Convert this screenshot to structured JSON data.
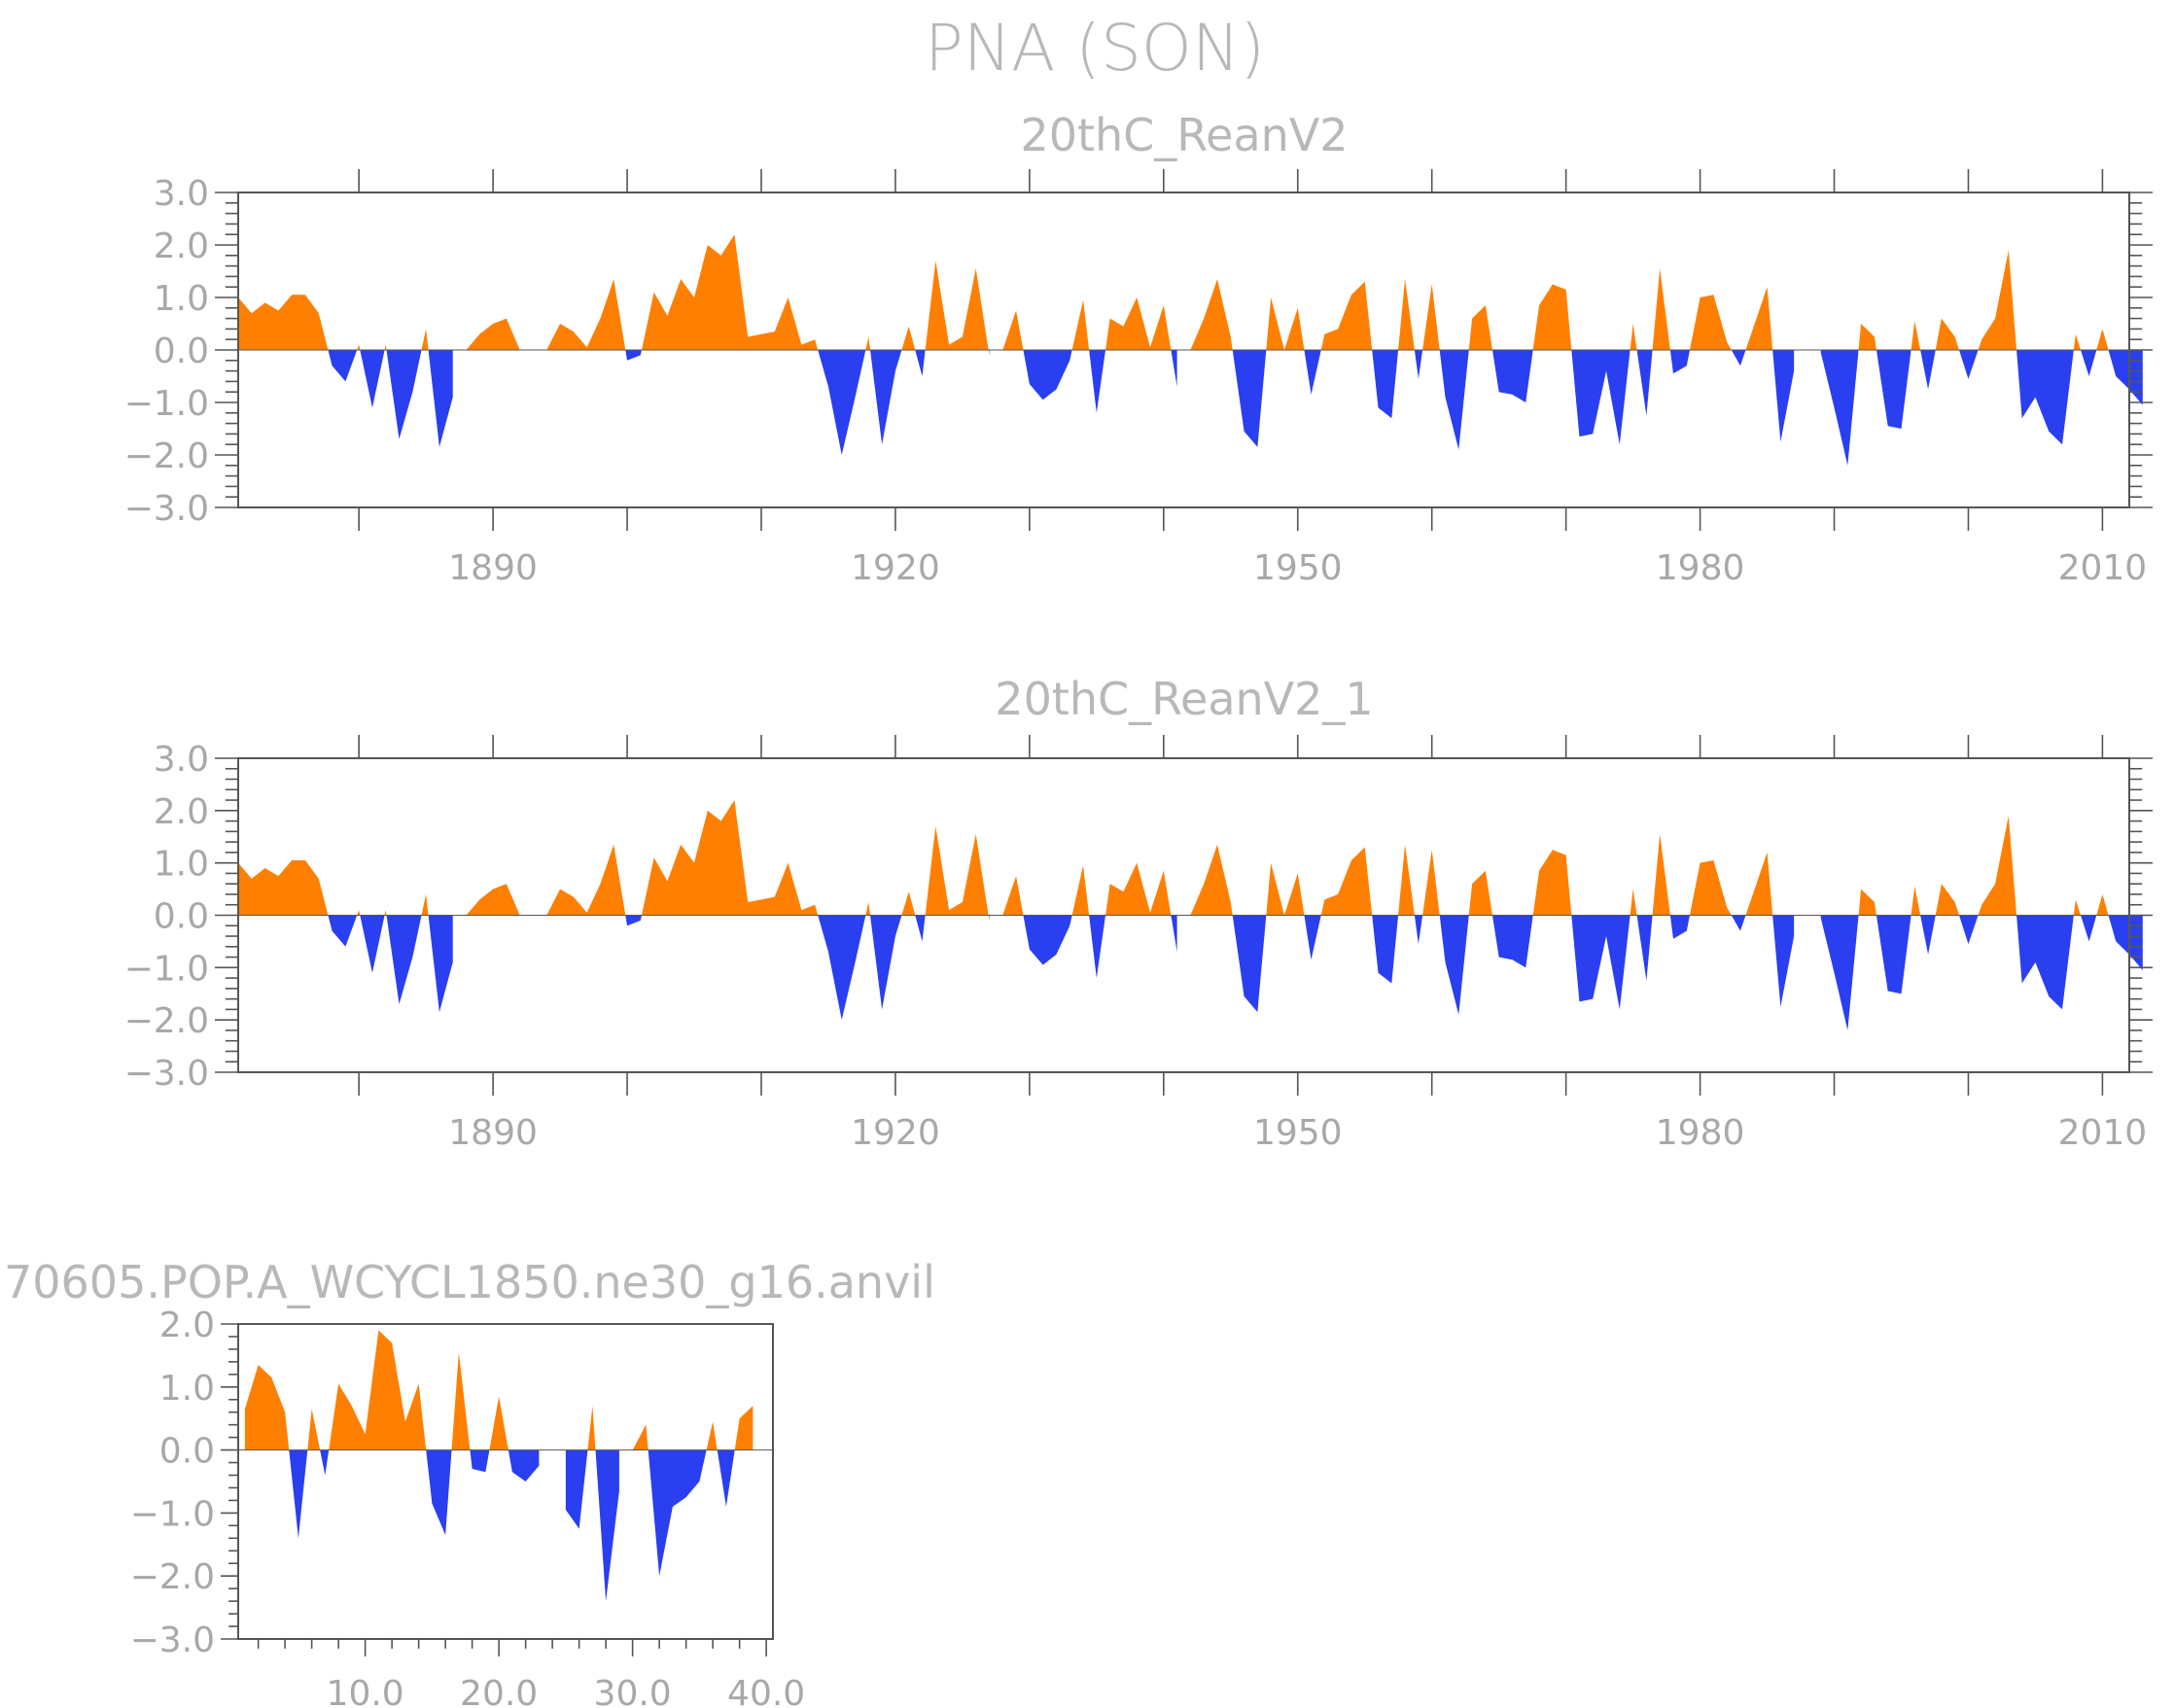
{
  "figure_title": "PNA (SON)",
  "colors": {
    "positive": "#ff7f00",
    "negative": "#2a3ff0",
    "frame": "#555555",
    "text": "#b0b0b0"
  },
  "chart_data": [
    {
      "type": "area",
      "title": "20thC_ReanV2",
      "xlabel": "",
      "ylabel": "",
      "xlim": [
        1871,
        2012
      ],
      "ylim": [
        -3.0,
        3.0
      ],
      "x_ticks": [
        1890,
        1920,
        1950,
        1980,
        2010
      ],
      "x_tick_labels": [
        "1890",
        "1920",
        "1950",
        "1980",
        "2010"
      ],
      "y_ticks": [
        -3.0,
        -2.0,
        -1.0,
        0.0,
        1.0,
        2.0,
        3.0
      ],
      "y_tick_labels": [
        "−3.0",
        "−2.0",
        "−1.0",
        "0.0",
        "1.0",
        "2.0",
        "3.0"
      ],
      "x_start": 1871,
      "values": [
        1.0,
        0.7,
        0.9,
        0.75,
        1.05,
        1.05,
        0.7,
        -0.3,
        -0.6,
        0.1,
        -1.1,
        0.1,
        -1.7,
        -0.8,
        0.4,
        -1.85,
        -0.9,
        0.0,
        0.3,
        0.5,
        0.6,
        0.0,
        -0.2,
        0.0,
        0.5,
        0.35,
        0.05,
        0.6,
        1.35,
        -0.2,
        -0.1,
        1.1,
        0.65,
        1.35,
        1.0,
        2.0,
        1.8,
        2.2,
        0.25,
        0.3,
        0.35,
        1.0,
        0.1,
        0.2,
        -0.7,
        -2.0,
        -0.9,
        0.25,
        -1.8,
        -0.4,
        0.45,
        -0.5,
        1.7,
        0.1,
        0.25,
        1.55,
        -0.1,
        0.0,
        0.75,
        -0.65,
        -0.95,
        -0.75,
        -0.2,
        0.95,
        -1.2,
        0.6,
        0.45,
        1.0,
        0.05,
        0.85,
        -0.7,
        0.0,
        0.6,
        1.35,
        0.25,
        -1.55,
        -1.85,
        1.0,
        0.0,
        0.8,
        -0.85,
        0.3,
        0.4,
        1.05,
        1.3,
        -1.1,
        -1.3,
        1.35,
        -0.55,
        1.25,
        -0.9,
        -1.9,
        0.6,
        0.85,
        -0.8,
        -0.85,
        -1.0,
        0.85,
        1.25,
        1.15,
        -1.65,
        -1.6,
        -0.4,
        -1.8,
        0.5,
        -1.25,
        1.55,
        -0.45,
        -0.3,
        1.0,
        1.05,
        0.15,
        -0.3,
        0.45,
        1.2,
        -1.75,
        -0.4,
        0.0,
        -0.05,
        -1.1,
        -2.2,
        0.5,
        0.25,
        -1.45,
        -1.5,
        0.55,
        -0.75,
        0.6,
        0.25,
        -0.55,
        0.2,
        0.6,
        1.9,
        -1.3,
        -0.9,
        -1.55,
        -1.8,
        0.3,
        -0.5,
        0.4,
        -0.5,
        -0.75,
        -1.05
      ]
    },
    {
      "type": "area",
      "title": "20thC_ReanV2_1",
      "xlabel": "",
      "ylabel": "",
      "xlim": [
        1871,
        2012
      ],
      "ylim": [
        -3.0,
        3.0
      ],
      "x_ticks": [
        1890,
        1920,
        1950,
        1980,
        2010
      ],
      "x_tick_labels": [
        "1890",
        "1920",
        "1950",
        "1980",
        "2010"
      ],
      "y_ticks": [
        -3.0,
        -2.0,
        -1.0,
        0.0,
        1.0,
        2.0,
        3.0
      ],
      "y_tick_labels": [
        "−3.0",
        "−2.0",
        "−1.0",
        "0.0",
        "1.0",
        "2.0",
        "3.0"
      ],
      "x_start": 1871,
      "values": [
        1.0,
        0.7,
        0.9,
        0.75,
        1.05,
        1.05,
        0.7,
        -0.3,
        -0.6,
        0.1,
        -1.1,
        0.1,
        -1.7,
        -0.8,
        0.4,
        -1.85,
        -0.9,
        0.0,
        0.3,
        0.5,
        0.6,
        0.0,
        -0.2,
        0.0,
        0.5,
        0.35,
        0.05,
        0.6,
        1.35,
        -0.2,
        -0.1,
        1.1,
        0.65,
        1.35,
        1.0,
        2.0,
        1.8,
        2.2,
        0.25,
        0.3,
        0.35,
        1.0,
        0.1,
        0.2,
        -0.7,
        -2.0,
        -0.9,
        0.25,
        -1.8,
        -0.4,
        0.45,
        -0.5,
        1.7,
        0.1,
        0.25,
        1.55,
        -0.1,
        0.0,
        0.75,
        -0.65,
        -0.95,
        -0.75,
        -0.2,
        0.95,
        -1.2,
        0.6,
        0.45,
        1.0,
        0.05,
        0.85,
        -0.7,
        0.0,
        0.6,
        1.35,
        0.25,
        -1.55,
        -1.85,
        1.0,
        0.0,
        0.8,
        -0.85,
        0.3,
        0.4,
        1.05,
        1.3,
        -1.1,
        -1.3,
        1.35,
        -0.55,
        1.25,
        -0.9,
        -1.9,
        0.6,
        0.85,
        -0.8,
        -0.85,
        -1.0,
        0.85,
        1.25,
        1.15,
        -1.65,
        -1.6,
        -0.4,
        -1.8,
        0.5,
        -1.25,
        1.55,
        -0.45,
        -0.3,
        1.0,
        1.05,
        0.15,
        -0.3,
        0.45,
        1.2,
        -1.75,
        -0.4,
        0.0,
        -0.05,
        -1.1,
        -2.2,
        0.5,
        0.25,
        -1.45,
        -1.5,
        0.55,
        -0.75,
        0.6,
        0.25,
        -0.55,
        0.2,
        0.6,
        1.9,
        -1.3,
        -0.9,
        -1.55,
        -1.8,
        0.3,
        -0.5,
        0.4,
        -0.5,
        -0.75,
        -1.05
      ]
    },
    {
      "type": "area",
      "title": "70605.POP.A_WCYCL1850.ne30_g16.anvil",
      "xlabel": "",
      "ylabel": "",
      "xlim": [
        0.5,
        40.5
      ],
      "ylim": [
        -3.0,
        2.0
      ],
      "x_ticks": [
        10,
        20,
        30,
        40
      ],
      "x_tick_labels": [
        "10.0",
        "20.0",
        "30.0",
        "40.0"
      ],
      "y_ticks": [
        -3.0,
        -2.0,
        -1.0,
        0.0,
        1.0,
        2.0
      ],
      "y_tick_labels": [
        "−3.0",
        "−2.0",
        "−1.0",
        "0.0",
        "1.0",
        "2.0"
      ],
      "x_start": 1,
      "values": [
        0.65,
        1.35,
        1.15,
        0.6,
        -1.4,
        0.65,
        -0.4,
        1.05,
        0.7,
        0.25,
        1.9,
        1.7,
        0.45,
        1.05,
        -0.85,
        -1.35,
        1.55,
        -0.3,
        -0.35,
        0.85,
        -0.35,
        -0.5,
        -0.25,
        0.0,
        -0.95,
        -1.25,
        0.7,
        -2.4,
        -0.65,
        0.0,
        0.4,
        -2.0,
        -0.9,
        -0.75,
        -0.5,
        0.45,
        -0.9,
        0.5,
        0.7
      ]
    }
  ]
}
